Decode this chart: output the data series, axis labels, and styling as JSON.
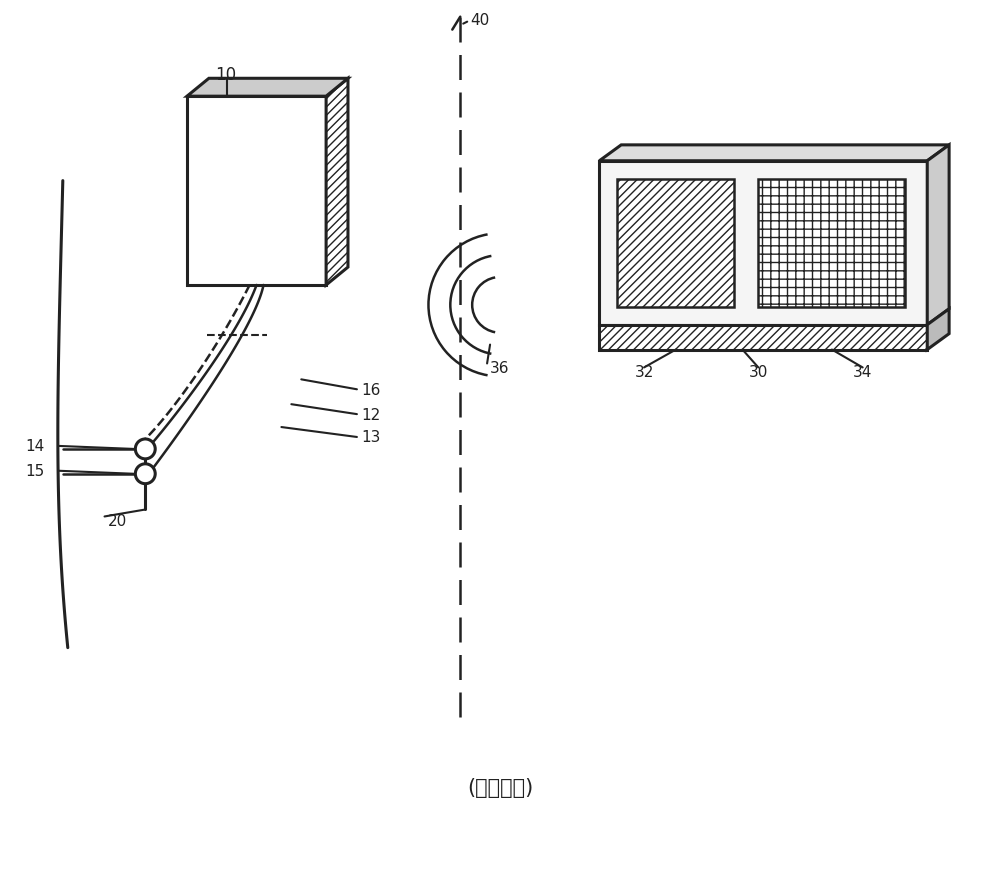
{
  "bg_color": "#ffffff",
  "line_color": "#222222",
  "fig_width": 10.0,
  "fig_height": 8.7,
  "title_text": "(现有技术)",
  "title_fontsize": 15
}
